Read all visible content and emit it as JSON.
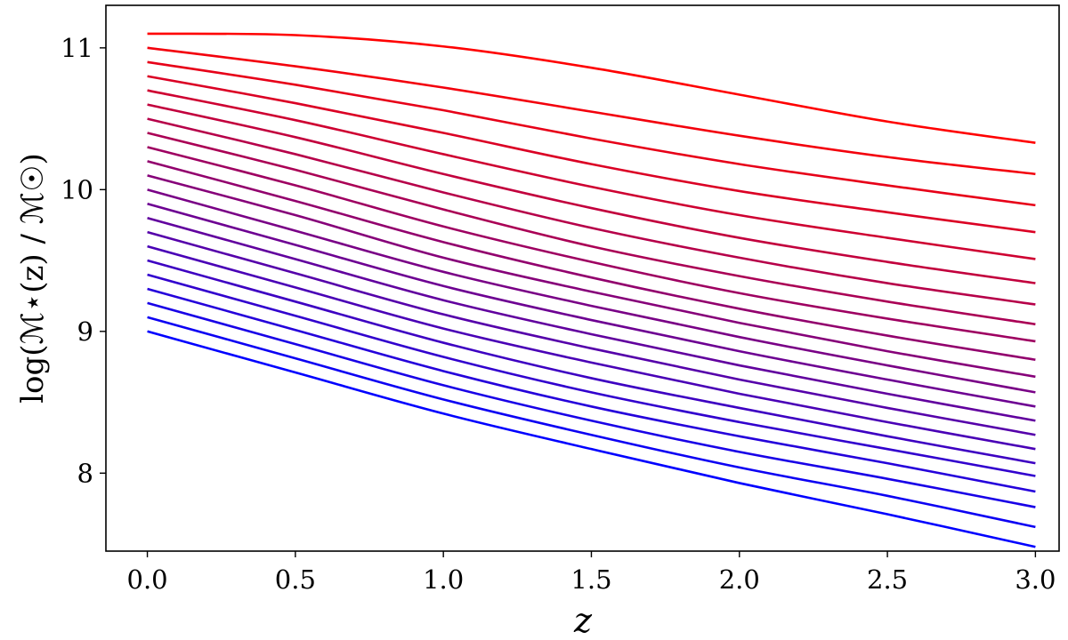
{
  "chart_data": {
    "type": "line",
    "title": "",
    "xlabel": "z",
    "ylabel": "log(ℳ⋆(z) / ℳ☉)",
    "xlim": [
      -0.14,
      3.08
    ],
    "ylim": [
      7.45,
      11.3
    ],
    "grid": false,
    "legend": "none",
    "xticks": [
      {
        "value": 0.0,
        "label": "0.0"
      },
      {
        "value": 0.5,
        "label": "0.5"
      },
      {
        "value": 1.0,
        "label": "1.0"
      },
      {
        "value": 1.5,
        "label": "1.5"
      },
      {
        "value": 2.0,
        "label": "2.0"
      },
      {
        "value": 2.5,
        "label": "2.5"
      },
      {
        "value": 3.0,
        "label": "3.0"
      }
    ],
    "yticks": [
      {
        "value": 8,
        "label": "8"
      },
      {
        "value": 9,
        "label": "9"
      },
      {
        "value": 10,
        "label": "10"
      },
      {
        "value": 11,
        "label": "11"
      }
    ],
    "x": [
      0.0,
      0.5,
      1.0,
      1.5,
      2.0,
      2.5,
      3.0
    ],
    "color_low": "#0000ff",
    "color_high": "#ff0000",
    "series": [
      {
        "values": [
          9.0,
          8.71,
          8.42,
          8.17,
          7.93,
          7.71,
          7.48
        ]
      },
      {
        "values": [
          9.1,
          8.81,
          8.52,
          8.27,
          8.04,
          7.84,
          7.62
        ]
      },
      {
        "values": [
          9.2,
          8.91,
          8.62,
          8.37,
          8.15,
          7.96,
          7.76
        ]
      },
      {
        "values": [
          9.3,
          9.01,
          8.72,
          8.47,
          8.26,
          8.07,
          7.87
        ]
      },
      {
        "values": [
          9.4,
          9.11,
          8.82,
          8.57,
          8.36,
          8.17,
          7.98
        ]
      },
      {
        "values": [
          9.5,
          9.21,
          8.92,
          8.67,
          8.46,
          8.26,
          8.07
        ]
      },
      {
        "values": [
          9.6,
          9.31,
          9.02,
          8.78,
          8.56,
          8.36,
          8.17
        ]
      },
      {
        "values": [
          9.7,
          9.41,
          9.12,
          8.88,
          8.66,
          8.46,
          8.27
        ]
      },
      {
        "values": [
          9.8,
          9.51,
          9.22,
          8.98,
          8.76,
          8.56,
          8.37
        ]
      },
      {
        "values": [
          9.9,
          9.61,
          9.32,
          9.08,
          8.86,
          8.66,
          8.47
        ]
      },
      {
        "values": [
          10.0,
          9.71,
          9.42,
          9.18,
          8.96,
          8.76,
          8.57
        ]
      },
      {
        "values": [
          10.1,
          9.82,
          9.52,
          9.28,
          9.06,
          8.86,
          8.68
        ]
      },
      {
        "values": [
          10.2,
          9.92,
          9.63,
          9.38,
          9.16,
          8.97,
          8.8
        ]
      },
      {
        "values": [
          10.3,
          10.03,
          9.74,
          9.49,
          9.27,
          9.09,
          8.93
        ]
      },
      {
        "values": [
          10.4,
          10.14,
          9.86,
          9.6,
          9.39,
          9.21,
          9.05
        ]
      },
      {
        "values": [
          10.5,
          10.25,
          9.98,
          9.73,
          9.52,
          9.34,
          9.19
        ]
      },
      {
        "values": [
          10.6,
          10.37,
          10.11,
          9.87,
          9.66,
          9.49,
          9.34
        ]
      },
      {
        "values": [
          10.7,
          10.49,
          10.25,
          10.02,
          9.82,
          9.66,
          9.51
        ]
      },
      {
        "values": [
          10.8,
          10.61,
          10.4,
          10.18,
          9.99,
          9.84,
          9.7
        ]
      },
      {
        "values": [
          10.9,
          10.74,
          10.56,
          10.36,
          10.18,
          10.03,
          9.89
        ]
      },
      {
        "values": [
          11.0,
          10.87,
          10.72,
          10.55,
          10.38,
          10.23,
          10.11
        ]
      },
      {
        "values": [
          11.1,
          11.09,
          11.01,
          10.86,
          10.67,
          10.48,
          10.33
        ]
      }
    ]
  }
}
